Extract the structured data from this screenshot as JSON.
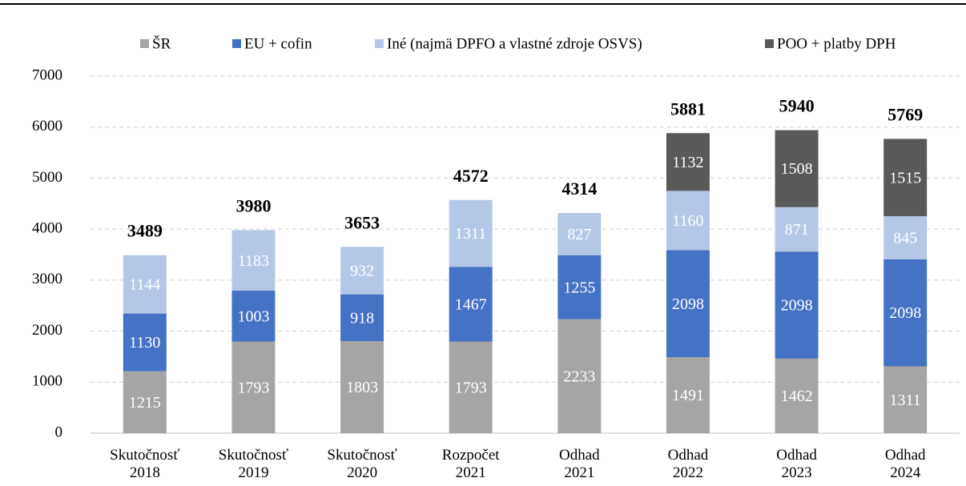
{
  "chart_data": {
    "type": "stacked_bar",
    "categories": [
      "Skutočnosť\n2018",
      "Skutočnosť\n2019",
      "Skutočnosť\n2020",
      "Rozpočet\n2021",
      "Odhad\n2021",
      "Odhad\n2022",
      "Odhad\n2023",
      "Odhad\n2024"
    ],
    "series": [
      {
        "name": "ŠR",
        "color": "#a5a5a5",
        "values": [
          1215,
          1793,
          1803,
          1793,
          2233,
          1491,
          1462,
          1311
        ]
      },
      {
        "name": "EU + cofin",
        "color": "#4472c4",
        "values": [
          1130,
          1003,
          918,
          1467,
          1255,
          2098,
          2098,
          2098
        ]
      },
      {
        "name": "Iné (najmä DPFO a vlastné zdroje OSVS)",
        "color": "#b4c7e7",
        "values": [
          1144,
          1183,
          932,
          1311,
          827,
          1160,
          871,
          845
        ]
      },
      {
        "name": "POO + platby DPH",
        "color": "#595959",
        "values": [
          null,
          null,
          null,
          null,
          null,
          1132,
          1508,
          1515
        ]
      }
    ],
    "totals": [
      3489,
      3980,
      3653,
      4572,
      4314,
      5881,
      5940,
      5769
    ],
    "ylim": [
      0,
      7000
    ],
    "yticks": [
      0,
      1000,
      2000,
      3000,
      4000,
      5000,
      6000,
      7000
    ],
    "grid": true
  }
}
